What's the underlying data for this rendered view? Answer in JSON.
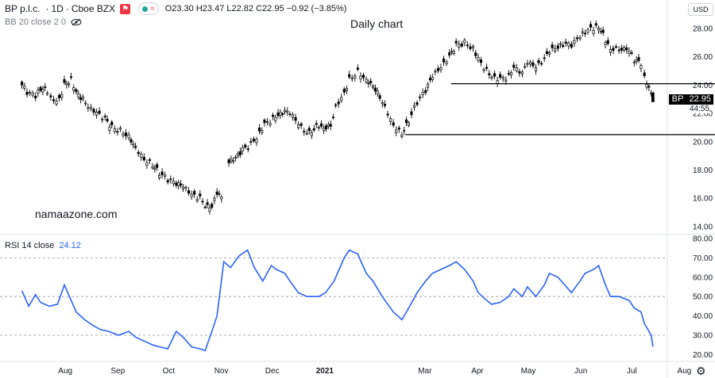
{
  "legend": {
    "symbol": "BP p.l.c.",
    "interval": "1D",
    "exchange": "Cboe BZX",
    "flag_icon": "flag-icon",
    "indicator_dot_colors": [
      "#26a69a",
      "#f23645"
    ],
    "pill_text": "≈",
    "open_label": "O",
    "open": "23.30",
    "high_label": "H",
    "high": "23.47",
    "low_label": "L",
    "low": "22.82",
    "close_label": "C",
    "close": "22.95",
    "change": "−0.92 (−3.85%)"
  },
  "bb_legend": {
    "text": "BB 20 close 2 0",
    "icon": "eye-hidden-icon"
  },
  "chart_title": "Daily chart",
  "watermark": "namaazone.com",
  "currency_button": "USD",
  "last_price_tag": {
    "symbol": "BP",
    "price": "22.95",
    "countdown": "44:55"
  },
  "rsi_legend": {
    "text": "RSI 14 close",
    "value": "24.12"
  },
  "settings_icon": "gear-icon",
  "colors": {
    "candle": "#000000",
    "rsi_line": "#2962ff",
    "grid": "#f0f3fa",
    "level_line": "#9598a1"
  },
  "chart_data": [
    {
      "type": "candlestick",
      "title": "Daily chart",
      "ylim": [
        14,
        28.6
      ],
      "yticks": [
        "14.00",
        "16.00",
        "18.00",
        "20.00",
        "22.00",
        "24.00",
        "26.00",
        "28.00"
      ],
      "xticks": [
        "Aug",
        "Sep",
        "Oct",
        "Nov",
        "Dec",
        "2021",
        "Mar",
        "Apr",
        "May",
        "Jun",
        "Jul",
        "Aug"
      ],
      "close_path": [
        [
          "2020-07-13",
          24.0
        ],
        [
          "2020-07-16",
          23.5
        ],
        [
          "2020-07-21",
          23.2
        ],
        [
          "2020-07-24",
          23.8
        ],
        [
          "2020-07-28",
          23.6
        ],
        [
          "2020-07-30",
          23.0
        ],
        [
          "2020-08-04",
          23.0
        ],
        [
          "2020-08-07",
          24.0
        ],
        [
          "2020-08-11",
          24.4
        ],
        [
          "2020-08-14",
          23.4
        ],
        [
          "2020-08-18",
          23.0
        ],
        [
          "2020-08-21",
          22.4
        ],
        [
          "2020-08-26",
          22.0
        ],
        [
          "2020-08-31",
          21.6
        ],
        [
          "2020-09-04",
          21.0
        ],
        [
          "2020-09-09",
          20.8
        ],
        [
          "2020-09-14",
          20.4
        ],
        [
          "2020-09-18",
          19.6
        ],
        [
          "2020-09-23",
          18.8
        ],
        [
          "2020-09-28",
          18.4
        ],
        [
          "2020-10-02",
          17.8
        ],
        [
          "2020-10-07",
          17.3
        ],
        [
          "2020-10-12",
          17.0
        ],
        [
          "2020-10-16",
          16.8
        ],
        [
          "2020-10-21",
          16.2
        ],
        [
          "2020-10-26",
          16.0
        ],
        [
          "2020-10-29",
          15.4
        ],
        [
          "2020-11-02",
          15.3
        ],
        [
          "2020-11-05",
          16.4
        ],
        [
          "2020-11-09",
          15.8
        ]
      ],
      "close_path_2": [
        [
          "2020-11-12",
          18.5
        ],
        [
          "2020-11-16",
          18.8
        ],
        [
          "2020-11-20",
          19.4
        ],
        [
          "2020-11-25",
          19.8
        ],
        [
          "2020-11-30",
          20.6
        ],
        [
          "2020-12-03",
          21.2
        ],
        [
          "2020-12-08",
          21.6
        ],
        [
          "2020-12-11",
          21.8
        ],
        [
          "2020-12-15",
          22.1
        ],
        [
          "2020-12-18",
          22.0
        ],
        [
          "2020-12-23",
          21.2
        ],
        [
          "2020-12-28",
          20.5
        ],
        [
          "2021-01-04",
          21.2
        ],
        [
          "2021-01-07",
          21.0
        ],
        [
          "2021-01-11",
          21.2
        ],
        [
          "2021-01-14",
          22.5
        ],
        [
          "2021-01-19",
          23.5
        ],
        [
          "2021-01-22",
          24.4
        ],
        [
          "2021-01-27",
          25.0
        ],
        [
          "2021-02-01",
          24.4
        ],
        [
          "2021-02-05",
          24.0
        ],
        [
          "2021-02-09",
          23.2
        ],
        [
          "2021-02-12",
          22.5
        ],
        [
          "2021-02-17",
          21.2
        ],
        [
          "2021-02-22",
          20.6
        ],
        [
          "2021-02-26",
          21.5
        ],
        [
          "2021-03-03",
          22.8
        ],
        [
          "2021-03-08",
          23.6
        ],
        [
          "2021-03-12",
          24.6
        ],
        [
          "2021-03-17",
          25.2
        ],
        [
          "2021-03-22",
          26.0
        ],
        [
          "2021-03-26",
          26.8
        ],
        [
          "2021-03-31",
          27.0
        ],
        [
          "2021-04-05",
          26.6
        ],
        [
          "2021-04-08",
          25.8
        ],
        [
          "2021-04-13",
          25.0
        ],
        [
          "2021-04-16",
          24.5
        ],
        [
          "2021-04-21",
          24.4
        ],
        [
          "2021-04-26",
          24.6
        ],
        [
          "2021-04-29",
          25.2
        ],
        [
          "2021-05-04",
          24.8
        ],
        [
          "2021-05-07",
          25.6
        ],
        [
          "2021-05-12",
          25.2
        ],
        [
          "2021-05-17",
          25.8
        ],
        [
          "2021-05-20",
          26.4
        ],
        [
          "2021-05-25",
          26.6
        ],
        [
          "2021-05-28",
          26.9
        ],
        [
          "2021-06-02",
          26.8
        ],
        [
          "2021-06-07",
          27.4
        ],
        [
          "2021-06-10",
          27.8
        ],
        [
          "2021-06-15",
          28.0
        ],
        [
          "2021-06-18",
          28.2
        ],
        [
          "2021-06-22",
          27.2
        ],
        [
          "2021-06-25",
          26.6
        ],
        [
          "2021-06-30",
          26.6
        ],
        [
          "2021-07-06",
          26.4
        ],
        [
          "2021-07-09",
          25.8
        ],
        [
          "2021-07-13",
          25.5
        ],
        [
          "2021-07-15",
          24.6
        ],
        [
          "2021-07-19",
          23.5
        ],
        [
          "2021-07-20",
          22.95
        ]
      ],
      "horizontal_lines": [
        {
          "y": 24.1,
          "from": "2021-03-23",
          "to": "2021-08-27"
        },
        {
          "y": 20.5,
          "from": "2021-02-24",
          "to": "2021-08-27"
        }
      ],
      "last_price": 22.95
    },
    {
      "type": "line",
      "title": "RSI 14 close",
      "ylim": [
        17,
        80
      ],
      "yticks": [
        "20.00",
        "30.00",
        "40.00",
        "50.00",
        "60.00",
        "70.00",
        "80.00"
      ],
      "dashed_levels": [
        70,
        50,
        30
      ],
      "series": [
        {
          "name": "RSI 14 close",
          "points": [
            [
              "2020-07-13",
              53
            ],
            [
              "2020-07-17",
              45
            ],
            [
              "2020-07-21",
              51
            ],
            [
              "2020-07-24",
              47
            ],
            [
              "2020-07-29",
              45
            ],
            [
              "2020-08-03",
              46
            ],
            [
              "2020-08-07",
              56
            ],
            [
              "2020-08-11",
              48
            ],
            [
              "2020-08-14",
              42
            ],
            [
              "2020-08-19",
              38
            ],
            [
              "2020-08-24",
              35
            ],
            [
              "2020-08-28",
              33
            ],
            [
              "2020-09-02",
              32
            ],
            [
              "2020-09-08",
              30
            ],
            [
              "2020-09-14",
              32
            ],
            [
              "2020-09-18",
              29
            ],
            [
              "2020-09-23",
              27
            ],
            [
              "2020-09-28",
              25
            ],
            [
              "2020-10-02",
              24
            ],
            [
              "2020-10-07",
              23
            ],
            [
              "2020-10-12",
              32
            ],
            [
              "2020-10-16",
              29
            ],
            [
              "2020-10-21",
              24
            ],
            [
              "2020-10-26",
              23
            ],
            [
              "2020-10-29",
              22
            ],
            [
              "2020-11-02",
              32
            ],
            [
              "2020-11-05",
              40
            ],
            [
              "2020-11-09",
              68
            ],
            [
              "2020-11-13",
              65
            ],
            [
              "2020-11-18",
              71
            ],
            [
              "2020-11-23",
              74
            ],
            [
              "2020-11-27",
              65
            ],
            [
              "2020-12-02",
              58
            ],
            [
              "2020-12-07",
              66
            ],
            [
              "2020-12-10",
              64
            ],
            [
              "2020-12-15",
              62
            ],
            [
              "2020-12-18",
              58
            ],
            [
              "2020-12-23",
              52
            ],
            [
              "2020-12-28",
              50
            ],
            [
              "2021-01-04",
              50
            ],
            [
              "2021-01-08",
              52
            ],
            [
              "2021-01-13",
              58
            ],
            [
              "2021-01-19",
              70
            ],
            [
              "2021-01-22",
              74
            ],
            [
              "2021-01-27",
              72
            ],
            [
              "2021-02-01",
              62
            ],
            [
              "2021-02-05",
              58
            ],
            [
              "2021-02-09",
              52
            ],
            [
              "2021-02-12",
              48
            ],
            [
              "2021-02-17",
              42
            ],
            [
              "2021-02-22",
              38
            ],
            [
              "2021-02-26",
              44
            ],
            [
              "2021-03-03",
              52
            ],
            [
              "2021-03-08",
              58
            ],
            [
              "2021-03-12",
              62
            ],
            [
              "2021-03-17",
              64
            ],
            [
              "2021-03-22",
              66
            ],
            [
              "2021-03-26",
              68
            ],
            [
              "2021-03-31",
              64
            ],
            [
              "2021-04-05",
              58
            ],
            [
              "2021-04-08",
              52
            ],
            [
              "2021-04-13",
              48
            ],
            [
              "2021-04-16",
              46
            ],
            [
              "2021-04-21",
              47
            ],
            [
              "2021-04-26",
              50
            ],
            [
              "2021-04-29",
              54
            ],
            [
              "2021-05-04",
              50
            ],
            [
              "2021-05-07",
              55
            ],
            [
              "2021-05-12",
              50
            ],
            [
              "2021-05-17",
              56
            ],
            [
              "2021-05-20",
              62
            ],
            [
              "2021-05-25",
              60
            ],
            [
              "2021-05-28",
              57
            ],
            [
              "2021-06-02",
              52
            ],
            [
              "2021-06-07",
              58
            ],
            [
              "2021-06-10",
              62
            ],
            [
              "2021-06-15",
              64
            ],
            [
              "2021-06-18",
              66
            ],
            [
              "2021-06-22",
              56
            ],
            [
              "2021-06-25",
              50
            ],
            [
              "2021-06-30",
              50
            ],
            [
              "2021-07-06",
              48
            ],
            [
              "2021-07-09",
              44
            ],
            [
              "2021-07-13",
              42
            ],
            [
              "2021-07-15",
              36
            ],
            [
              "2021-07-19",
              30
            ],
            [
              "2021-07-20",
              24.12
            ]
          ]
        }
      ]
    }
  ]
}
